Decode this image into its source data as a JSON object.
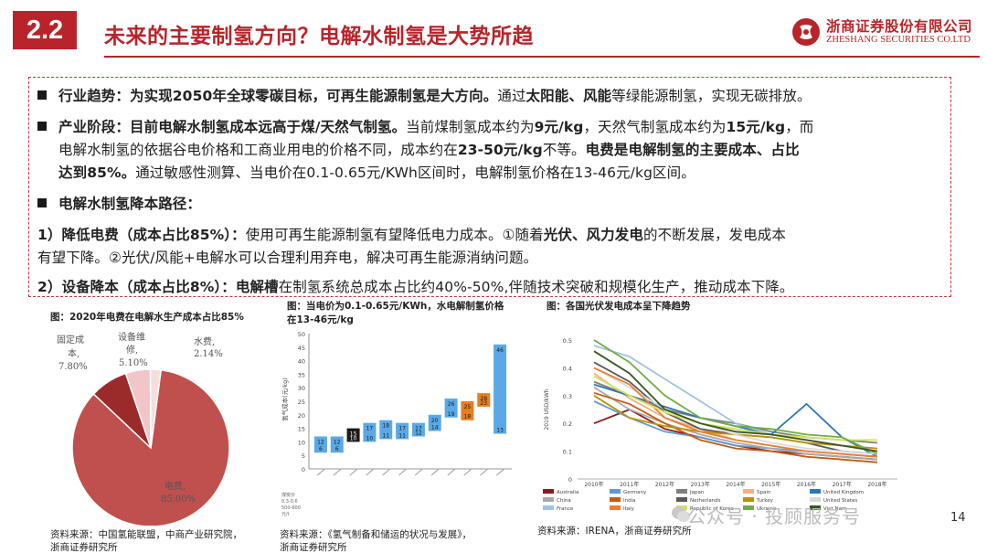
{
  "header": {
    "section": "2.2",
    "title": "未来的主要制氢方向？电解水制氢是大势所趋",
    "logo_cn": "浙商证券股份有限公司",
    "logo_en": "ZHESHANG SECURITIES CO.LTD"
  },
  "body": {
    "l1": {
      "b1": "行业趋势：为实现2050年全球零碳目标，可再生能源制氢是大方向。",
      "t1": "通过",
      "b2": "太阳能、风能",
      "t2": "等绿能源制氢，实现无碳排放。"
    },
    "l2": {
      "b1": "产业阶段：目前电解水制氢成本远高于煤/天然气制氢。",
      "t1": "当前煤制氢成本约为",
      "b2": "9元/kg",
      "t2": "，天然气制氢成本约为",
      "b3": "15元/kg",
      "t3": "，而"
    },
    "l3": {
      "t1": "电解水制氢的依据谷电价格和工商业用电的价格不同，成本约在",
      "b1": "23-50元/kg",
      "t2": "不等。",
      "b2": "电费是电解制氢的主要成本、占比"
    },
    "l4": {
      "b1": "达到85%。",
      "t1": "通过敏感性测算、当电价在0.1-0.65元/KWh区间时，电解制氢价格在13-46元/kg区间。"
    },
    "l5": {
      "b1": "电解水制氢降本路径："
    },
    "l6": {
      "b1": "1）降低电费（成本占比85%）：",
      "t1": "使用可再生能源制氢有望降低电力成本。①随着",
      "b2": "光伏、风力发电",
      "t2": "的不断发展，发电成本"
    },
    "l7": {
      "t1": "有望下降。②光伏/风能+电解水可以合理利用弃电，解决可再生能源消纳问题。"
    },
    "l8": {
      "b1": "2）设备降本（成本占比8%）：",
      "b2": "电解槽",
      "t1": "在制氢系统总成本占比约40%-50%,伴随技术突破和规模化生产，推动成本下降。"
    }
  },
  "fig1": {
    "caption": "图：2020年电费在电解水生产成本占比85%",
    "source1": "资料来源：中国氢能联盟，中商产业研究院，",
    "source2": "浙商证券研究所",
    "labels": {
      "fixed1": "固定成",
      "fixed2": "本,",
      "fixed3": "7.80%",
      "equip1": "设备维",
      "equip2": "修,",
      "equip3": "5.10%",
      "water1": "水费,",
      "water2": "2.14%",
      "elec1": "电费,",
      "elec2": "85.00%"
    }
  },
  "fig2": {
    "caption1": "图：当电价为0.1-0.65元/KWh，水电解制氢价格",
    "caption2": "在13-46元/kg",
    "source1": "资料来源：《氢气制备和储运的状况与发展》，",
    "source2": "浙商证券研究所",
    "ylabel": "氢气成本(元/kg)",
    "yticks": [
      "50",
      "45",
      "40",
      "35",
      "30",
      "25",
      "20",
      "15",
      "10",
      "5",
      "0"
    ],
    "xnotes": [
      "煤炭价",
      "0.3-0.6",
      "500-600",
      "元/t"
    ]
  },
  "fig3": {
    "caption": "图：各国光伏发电成本呈下降趋势",
    "source": "资料来源：IRENA，浙商证券研究所",
    "ylabel": "2019 USD/kWh",
    "yticks": [
      "0.5",
      "0.4",
      "0.3",
      "0.2",
      "0.1",
      "0"
    ],
    "years": [
      "2010年",
      "2011年",
      "2012年",
      "2013年",
      "2014年",
      "2015年",
      "2016年",
      "2017年",
      "2018年"
    ],
    "legend": [
      "Australia",
      "Germany",
      "Japan",
      "Spain",
      "United Kingdom",
      "China",
      "India",
      "Netherlands",
      "Turkey",
      "United States",
      "France",
      "Italy",
      "Republic of Korea",
      "Ukraine",
      "Viet Nam"
    ]
  },
  "chart_data": [
    {
      "type": "pie",
      "title": "2020年电费在电解水生产成本占比85%",
      "categories": [
        "电费",
        "固定成本",
        "设备维修",
        "水费"
      ],
      "values": [
        85.0,
        7.8,
        5.1,
        2.14
      ],
      "colors": [
        "#c0504d",
        "#9b2a2a",
        "#f2c6c8",
        "#f7dede"
      ]
    },
    {
      "type": "bar",
      "title": "当电价为0.1-0.65元/KWh，水电解制氢价格在13-46元/kg",
      "ylabel": "氢气成本(元/kg)",
      "ylim": [
        0,
        50
      ],
      "floating": true,
      "series": [
        {
          "low": 6,
          "high": 12,
          "color": "#5aa9e6"
        },
        {
          "low": 6,
          "high": 12,
          "color": "#5aa9e6"
        },
        {
          "low": 10,
          "high": 15,
          "color": "#1a1a1a"
        },
        {
          "low": 10,
          "high": 17,
          "color": "#5aa9e6"
        },
        {
          "low": 11,
          "high": 18,
          "color": "#5aa9e6"
        },
        {
          "low": 11,
          "high": 17,
          "color": "#5aa9e6"
        },
        {
          "low": 12,
          "high": 17,
          "color": "#5aa9e6"
        },
        {
          "low": 14,
          "high": 20,
          "color": "#5aa9e6"
        },
        {
          "low": 19,
          "high": 26,
          "color": "#5aa9e6"
        },
        {
          "low": 18,
          "high": 25,
          "color": "#e67e22"
        },
        {
          "low": 23,
          "high": 28,
          "color": "#e67e22"
        },
        {
          "low": 13,
          "high": 46,
          "color": "#5aa9e6"
        }
      ]
    },
    {
      "type": "line",
      "title": "各国光伏发电成本呈下降趋势",
      "ylabel": "2019 USD/kWh",
      "ylim": [
        0,
        0.5
      ],
      "x": [
        "2010年",
        "2011年",
        "2012年",
        "2013年",
        "2014年",
        "2015年",
        "2016年",
        "2017年",
        "2018年"
      ],
      "series": [
        {
          "name": "Australia",
          "color": "#8b1a1a",
          "values": [
            0.2,
            0.25,
            0.18,
            0.15,
            0.12,
            0.1,
            0.09,
            0.08,
            0.07
          ]
        },
        {
          "name": "Germany",
          "color": "#5b9bd5",
          "values": [
            0.28,
            0.22,
            0.17,
            0.15,
            0.12,
            0.11,
            0.1,
            0.09,
            0.08
          ]
        },
        {
          "name": "Japan",
          "color": "#7f7f7f",
          "values": [
            0.35,
            0.3,
            0.25,
            0.22,
            0.2,
            0.17,
            0.15,
            0.14,
            0.13
          ]
        },
        {
          "name": "Spain",
          "color": "#f4b183",
          "values": [
            0.38,
            0.29,
            0.22,
            0.18,
            0.14,
            0.12,
            0.1,
            0.09,
            0.08
          ]
        },
        {
          "name": "United Kingdom",
          "color": "#2e75b6",
          "values": [
            0.34,
            0.3,
            0.26,
            0.22,
            0.19,
            0.16,
            0.27,
            0.15,
            0.08
          ]
        },
        {
          "name": "China",
          "color": "#a9a9a9",
          "values": [
            0.33,
            0.25,
            0.2,
            0.16,
            0.13,
            0.11,
            0.09,
            0.08,
            0.07
          ]
        },
        {
          "name": "India",
          "color": "#c55a11",
          "values": [
            0.31,
            0.27,
            0.2,
            0.14,
            0.11,
            0.1,
            0.08,
            0.07,
            0.06
          ]
        },
        {
          "name": "Netherlands",
          "color": "#595959",
          "values": [
            0.42,
            0.35,
            0.24,
            0.18,
            0.16,
            0.15,
            0.13,
            0.1,
            0.09
          ]
        },
        {
          "name": "Turkey",
          "color": "#bf9000",
          "values": [
            0.3,
            0.22,
            0.19,
            0.17,
            0.16,
            0.15,
            0.13,
            0.12,
            0.11
          ]
        },
        {
          "name": "United States",
          "color": "#d9d9d9",
          "values": [
            0.4,
            0.33,
            0.25,
            0.2,
            0.16,
            0.13,
            0.11,
            0.1,
            0.09
          ]
        },
        {
          "name": "France",
          "color": "#9dc3e6",
          "values": [
            0.48,
            0.44,
            0.36,
            0.28,
            0.2,
            0.16,
            0.14,
            0.12,
            0.1
          ]
        },
        {
          "name": "Italy",
          "color": "#ed7d31",
          "values": [
            0.4,
            0.34,
            0.22,
            0.17,
            0.14,
            0.12,
            0.1,
            0.09,
            0.08
          ]
        },
        {
          "name": "Republic of Korea",
          "color": "#d4e157",
          "values": [
            0.37,
            0.3,
            0.24,
            0.2,
            0.18,
            0.16,
            0.15,
            0.14,
            0.14
          ]
        },
        {
          "name": "Ukraine",
          "color": "#70ad47",
          "values": [
            0.5,
            0.42,
            0.3,
            0.22,
            0.19,
            0.18,
            0.16,
            0.15,
            0.09
          ]
        },
        {
          "name": "Viet Nam",
          "color": "#375623",
          "values": [
            0.46,
            0.38,
            0.25,
            0.2,
            0.17,
            0.16,
            0.14,
            0.12,
            0.1
          ]
        }
      ]
    }
  ],
  "page_num": "14",
  "watermark": "公众号 · 投顾服务号"
}
